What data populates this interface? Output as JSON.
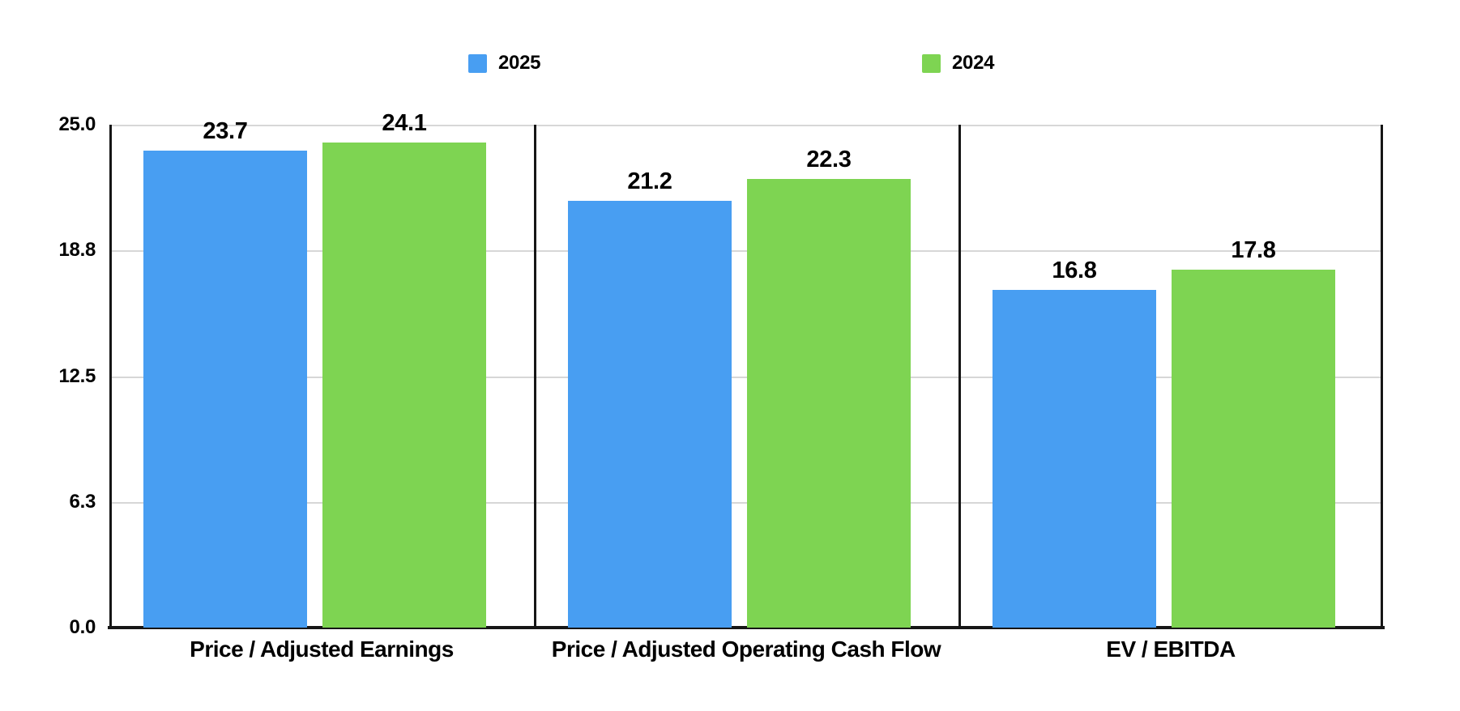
{
  "chart_data": {
    "type": "bar",
    "title": "",
    "xlabel": "",
    "ylabel": "",
    "categories": [
      "Price / Adjusted Earnings",
      "Price / Adjusted Operating Cash Flow",
      "EV / EBITDA"
    ],
    "series": [
      {
        "name": "2025",
        "color": "#489EF2",
        "values": [
          23.7,
          21.2,
          16.8
        ]
      },
      {
        "name": "2024",
        "color": "#7ED452",
        "values": [
          24.1,
          22.3,
          17.8
        ]
      }
    ],
    "value_label_format": "one_decimal",
    "yticks": [
      {
        "label": "0.0",
        "value": 0
      },
      {
        "label": "6.3",
        "value": 6.25
      },
      {
        "label": "12.5",
        "value": 12.5
      },
      {
        "label": "18.8",
        "value": 18.75
      },
      {
        "label": "25.0",
        "value": 25
      }
    ],
    "ylim": [
      0,
      25
    ],
    "grid": "horizontal",
    "legend_position": "top",
    "panel_dividers": true
  },
  "colors": {
    "series_2025": "#489EF2",
    "series_2024": "#7ED452",
    "gridline": "#D7D7D7",
    "axis": "#161616",
    "text": "#000000",
    "background": "#FFFFFF"
  }
}
